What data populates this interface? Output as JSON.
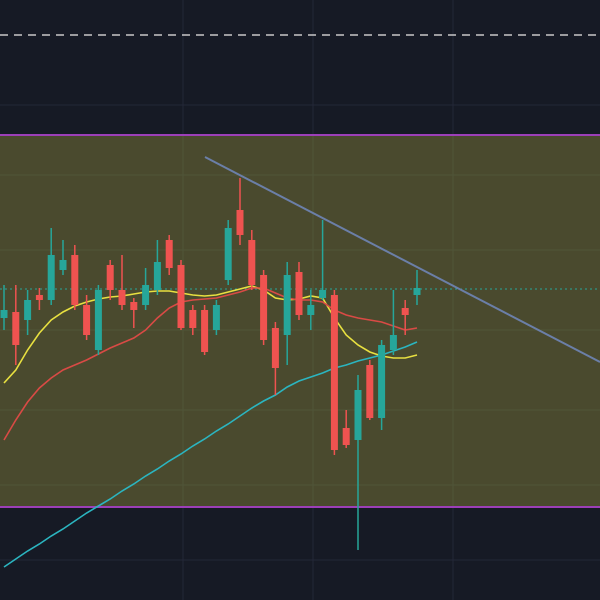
{
  "chart_data": {
    "type": "candlestick",
    "ylim": [
      0,
      600
    ],
    "up_color": "#26a69a",
    "down_color": "#ef5350",
    "open": [
      282,
      288,
      280,
      305,
      300,
      330,
      345,
      295,
      250,
      335,
      310,
      298,
      295,
      310,
      360,
      335,
      290,
      290,
      270,
      320,
      390,
      360,
      325,
      272,
      265,
      328,
      285,
      302,
      305,
      172,
      160,
      235,
      182,
      250,
      292,
      305
    ],
    "high": [
      315,
      315,
      310,
      312,
      372,
      360,
      355,
      305,
      315,
      340,
      345,
      302,
      332,
      360,
      365,
      340,
      295,
      295,
      300,
      380,
      422,
      370,
      330,
      278,
      338,
      338,
      310,
      380,
      310,
      190,
      225,
      240,
      260,
      310,
      300,
      330
    ],
    "low": [
      270,
      235,
      265,
      290,
      295,
      325,
      290,
      260,
      245,
      300,
      290,
      272,
      290,
      305,
      325,
      270,
      265,
      245,
      265,
      315,
      355,
      310,
      255,
      205,
      235,
      280,
      270,
      300,
      145,
      152,
      50,
      180,
      170,
      245,
      265,
      295
    ],
    "close": [
      290,
      255,
      300,
      300,
      345,
      340,
      295,
      265,
      310,
      310,
      295,
      290,
      315,
      338,
      332,
      272,
      272,
      248,
      295,
      372,
      365,
      315,
      260,
      232,
      325,
      285,
      295,
      310,
      150,
      155,
      210,
      182,
      255,
      265,
      285,
      312
    ],
    "series": [
      {
        "color": "#e8e040",
        "values": [
          217,
          230,
          250,
          267,
          280,
          288,
          294,
          298,
          301,
          303,
          304,
          306,
          308,
          309,
          309,
          307,
          305,
          304,
          305,
          308,
          311,
          314,
          310,
          302,
          300,
          301,
          304,
          302,
          282,
          265,
          255,
          248,
          244,
          242,
          242,
          245
        ]
      },
      {
        "color": "#d94a45",
        "values": [
          160,
          180,
          198,
          212,
          222,
          230,
          235,
          240,
          246,
          252,
          257,
          262,
          270,
          282,
          292,
          298,
          300,
          301,
          302,
          305,
          308,
          312,
          312,
          307,
          302,
          300,
          300,
          298,
          290,
          285,
          282,
          280,
          278,
          274,
          270,
          272
        ]
      },
      {
        "color": "#2bb5c0",
        "values": [
          33,
          41,
          49,
          56,
          64,
          71,
          79,
          87,
          94,
          101,
          109,
          116,
          124,
          131,
          139,
          146,
          154,
          161,
          169,
          176,
          184,
          192,
          199,
          205,
          213,
          219,
          223,
          227,
          232,
          235,
          239,
          242,
          245,
          249,
          253,
          258
        ]
      }
    ]
  }
}
